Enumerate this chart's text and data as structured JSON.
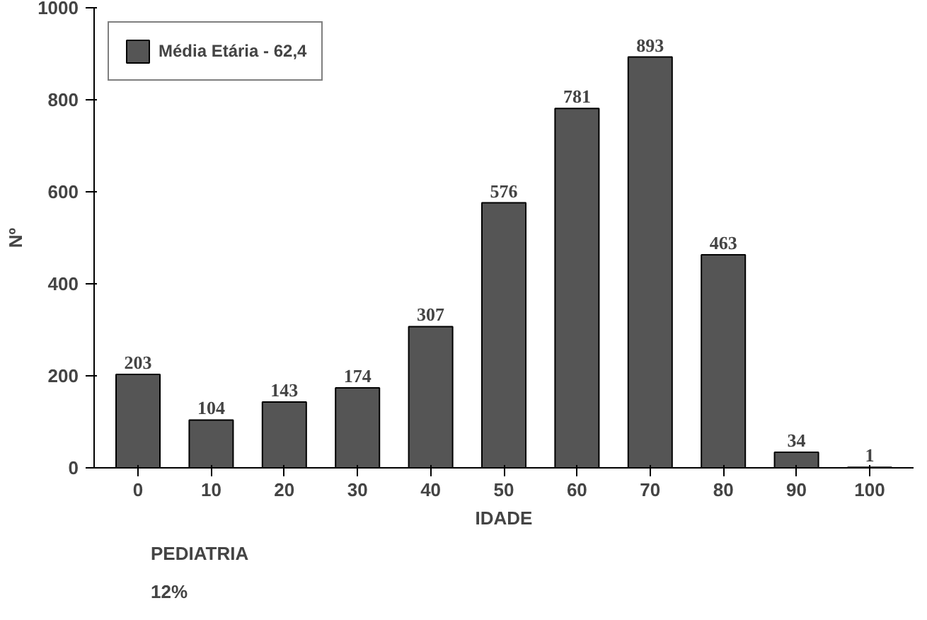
{
  "chart_data": {
    "type": "bar",
    "xlabel": "IDADE",
    "ylabel": "Nº",
    "categories": [
      "0",
      "10",
      "20",
      "30",
      "40",
      "50",
      "60",
      "70",
      "80",
      "90",
      "100"
    ],
    "series": [
      {
        "name": "Média Etária - 62,4",
        "color": "#555555",
        "values": [
          203,
          104,
          143,
          174,
          307,
          576,
          781,
          893,
          463,
          34,
          1
        ]
      }
    ],
    "ylim": [
      0,
      1000
    ],
    "yticks": [
      0,
      200,
      400,
      600,
      800,
      1000
    ],
    "grid": false,
    "legend": "top left",
    "data_labels": true,
    "annotations": [
      "PEDIATRIA",
      "12%"
    ]
  }
}
